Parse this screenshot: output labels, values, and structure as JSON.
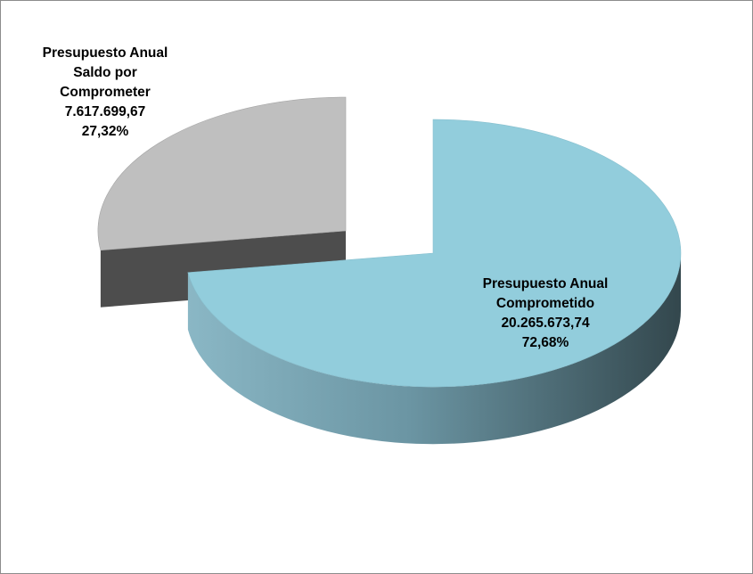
{
  "chart_data": {
    "type": "pie",
    "style": "3d-exploded",
    "slices": [
      {
        "name_lines": [
          "Presupuesto Anual",
          "Comprometido"
        ],
        "value": 20265673.74,
        "value_label": "20.265.673,74",
        "percent": 72.68,
        "percent_label": "72,68%",
        "color": "#92CDDC",
        "side_color_dark": "#3A5259",
        "side_color_light": "#7FAAB8"
      },
      {
        "name_lines": [
          "Presupuesto Anual",
          "Saldo por",
          "Comprometer"
        ],
        "value": 7617699.67,
        "value_label": "7.617.699,67",
        "percent": 27.32,
        "percent_label": "27,32%",
        "color": "#BFBFBF",
        "side_color_dark": "#4D4D4D",
        "side_color_light": "#5C5C5C"
      }
    ],
    "legend": "none"
  }
}
